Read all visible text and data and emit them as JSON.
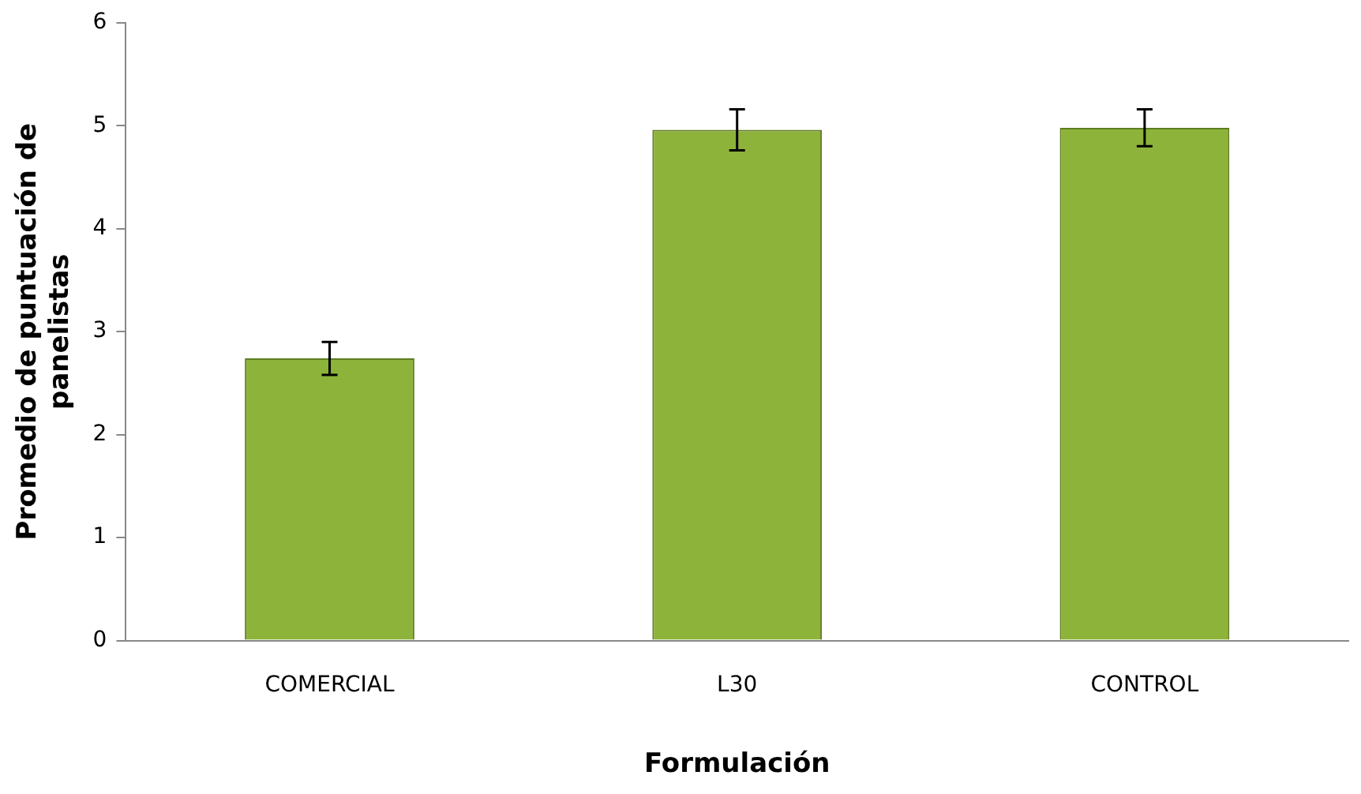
{
  "chart_data": {
    "type": "bar",
    "xlabel": "Formulación",
    "ylabel": "Promedio de puntuación de panelistas",
    "categories": [
      "COMERCIAL",
      "L30",
      "CONTROL"
    ],
    "values": [
      2.74,
      4.96,
      4.98
    ],
    "errors": [
      0.16,
      0.2,
      0.18
    ],
    "color": "#8db33a",
    "ylim": [
      0,
      6
    ],
    "yticks": [
      0,
      1,
      2,
      3,
      4,
      5,
      6
    ],
    "grid": false
  }
}
